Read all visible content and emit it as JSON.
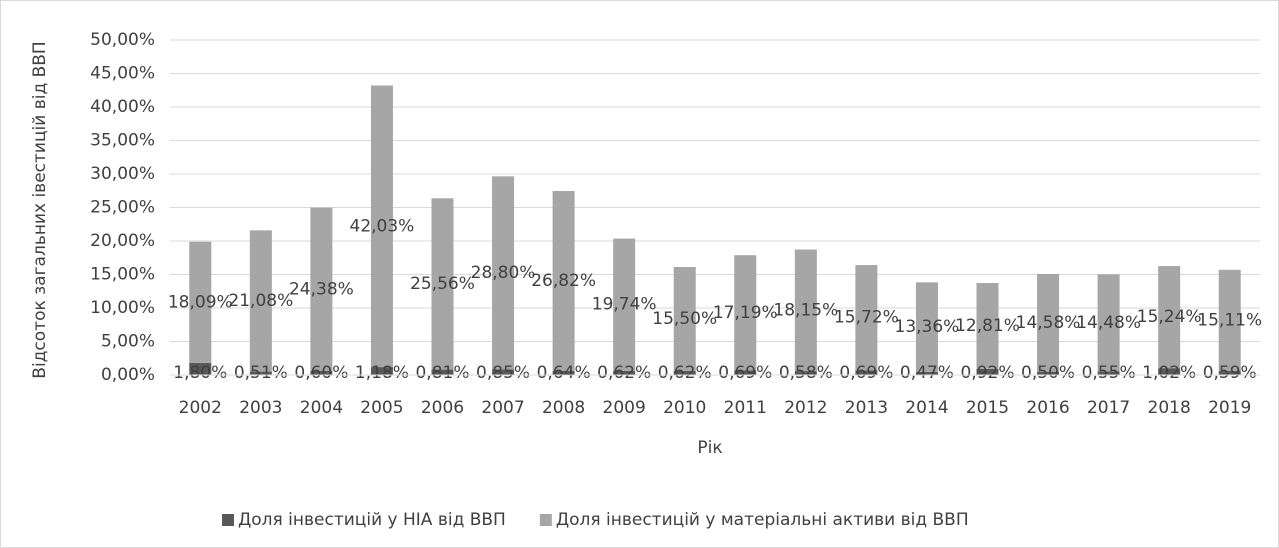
{
  "chart_data": {
    "type": "stacked_bar",
    "y_label": "Відсоток загальних івестицій від ВВП",
    "x_label": "Рік",
    "categories": [
      "2002",
      "2003",
      "2004",
      "2005",
      "2006",
      "2007",
      "2008",
      "2009",
      "2010",
      "2011",
      "2012",
      "2013",
      "2014",
      "2015",
      "2016",
      "2017",
      "2018",
      "2019"
    ],
    "series": [
      {
        "name": "Доля інвестицій у НІА від ВВП",
        "color": "#595959",
        "values": [
          1.8,
          0.51,
          0.6,
          1.18,
          0.81,
          0.85,
          0.64,
          0.62,
          0.62,
          0.69,
          0.58,
          0.69,
          0.47,
          0.92,
          0.5,
          0.55,
          1.02,
          0.59
        ],
        "value_labels": [
          "1,80%",
          "0,51%",
          "0,60%",
          "1,18%",
          "0,81%",
          "0,85%",
          "0,64%",
          "0,62%",
          "0,62%",
          "0,69%",
          "0,58%",
          "0,69%",
          "0,47%",
          "0,92%",
          "0,50%",
          "0,55%",
          "1,02%",
          "0,59%"
        ]
      },
      {
        "name": "Доля інвестицій у матеріальні активи від ВВП",
        "color": "#a6a6a6",
        "values": [
          18.09,
          21.08,
          24.38,
          42.03,
          25.56,
          28.8,
          26.82,
          19.74,
          15.5,
          17.19,
          18.15,
          15.72,
          13.36,
          12.81,
          14.58,
          14.48,
          15.24,
          15.11
        ],
        "value_labels": [
          "18,09%",
          "21,08%",
          "24,38%",
          "42,03%",
          "25,56%",
          "28,80%",
          "26,82%",
          "19,74%",
          "15,50%",
          "17,19%",
          "18,15%",
          "15,72%",
          "13,36%",
          "12,81%",
          "14,58%",
          "14,48%",
          "15,24%",
          "15,11%"
        ]
      }
    ],
    "ylim": [
      0,
      50
    ],
    "yticks": [
      {
        "value": 0,
        "label": "0,00%"
      },
      {
        "value": 5,
        "label": "5,00%"
      },
      {
        "value": 10,
        "label": "10,00%"
      },
      {
        "value": 15,
        "label": "15,00%"
      },
      {
        "value": 20,
        "label": "20,00%"
      },
      {
        "value": 25,
        "label": "25,00%"
      },
      {
        "value": 30,
        "label": "30,00%"
      },
      {
        "value": 35,
        "label": "35,00%"
      },
      {
        "value": 40,
        "label": "40,00%"
      },
      {
        "value": 45,
        "label": "45,00%"
      },
      {
        "value": 50,
        "label": "50,00%"
      }
    ],
    "grid": true,
    "legend": "bottom"
  }
}
